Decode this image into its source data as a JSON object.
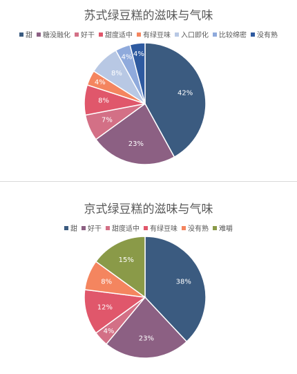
{
  "chart_data": [
    {
      "type": "pie",
      "title": "苏式绿豆糕的滋味与气味",
      "categories": [
        "甜",
        "糖没融化",
        "好干",
        "甜度适中",
        "有绿豆味",
        "入口即化",
        "比较绵密",
        "没有熟"
      ],
      "values": [
        42,
        23,
        7,
        8,
        4,
        8,
        4,
        4
      ],
      "labels": [
        "42%",
        "23%",
        "7%",
        "8%",
        "4%",
        "8%",
        "4%",
        "4%"
      ],
      "colors": [
        "#3b5b80",
        "#8c6083",
        "#d37086",
        "#e0576b",
        "#f4855f",
        "#b8c8e4",
        "#8faadc",
        "#2e5aa0"
      ],
      "legend": "top"
    },
    {
      "type": "pie",
      "title": "京式绿豆糕的滋味与气味",
      "categories": [
        "甜",
        "好干",
        "甜度适中",
        "有绿豆味",
        "没有熟",
        "难嚼"
      ],
      "values": [
        38,
        23,
        4,
        12,
        8,
        15
      ],
      "labels": [
        "38%",
        "23%",
        "4%",
        "12%",
        "8%",
        "15%"
      ],
      "colors": [
        "#3b5b80",
        "#8c6083",
        "#d37086",
        "#e0576b",
        "#f4855f",
        "#8a9a48"
      ],
      "legend": "top"
    }
  ]
}
